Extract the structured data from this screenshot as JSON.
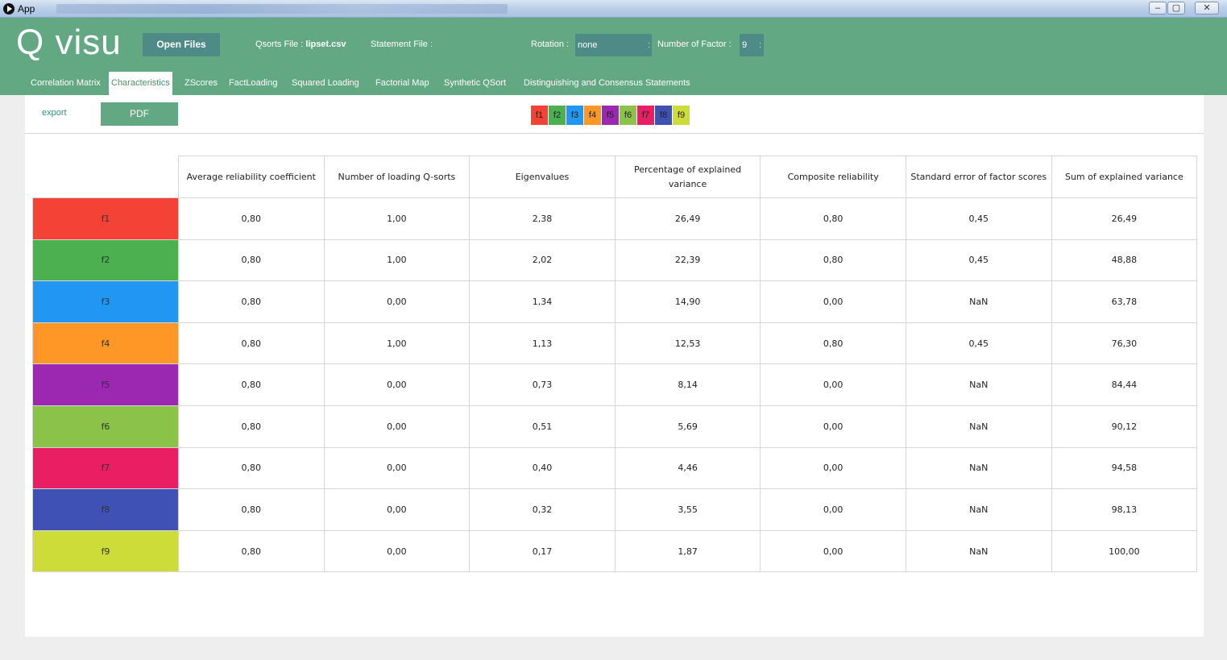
{
  "window": {
    "title": "App",
    "controls": {
      "minimize": "–",
      "maximize": "▢",
      "close": "✕"
    }
  },
  "header": {
    "logo": "Q visu",
    "open_files_label": "Open Files",
    "qsorts_file_label": "Qsorts File :",
    "qsorts_file_value": "lipset.csv",
    "statement_file_label": "Statement File :",
    "statement_file_value": "",
    "rotation_label": "Rotation :",
    "rotation_value": "none",
    "number_of_factor_label": "Number of Factor :",
    "number_of_factor_value": "9",
    "select_arrow": ":"
  },
  "tabs": [
    {
      "label": "Correlation Matrix",
      "active": false
    },
    {
      "label": "Characteristics",
      "active": true
    },
    {
      "label": "ZScores",
      "active": false
    },
    {
      "label": "FactLoading",
      "active": false
    },
    {
      "label": "Squared Loading",
      "active": false
    },
    {
      "label": "Factorial Map",
      "active": false
    },
    {
      "label": "Synthetic QSort",
      "active": false
    },
    {
      "label": "Distinguishing and Consensus Statements",
      "active": false
    }
  ],
  "toolbar": {
    "export_label": "export",
    "pdf_label": "PDF"
  },
  "factors": [
    {
      "label": "f1",
      "color": "#f44336"
    },
    {
      "label": "f2",
      "color": "#4caf50"
    },
    {
      "label": "f3",
      "color": "#2196f3"
    },
    {
      "label": "f4",
      "color": "#ff9726"
    },
    {
      "label": "f5",
      "color": "#9c27b0"
    },
    {
      "label": "f6",
      "color": "#8bc34a"
    },
    {
      "label": "f7",
      "color": "#e91e63"
    },
    {
      "label": "f8",
      "color": "#3f51b5"
    },
    {
      "label": "f9",
      "color": "#cddc39"
    }
  ],
  "table": {
    "columns": [
      "Average reliability coefficient",
      "Number of loading Q-sorts",
      "Eigenvalues",
      "Percentage of explained variance",
      "Composite reliability",
      "Standard error of factor scores",
      "Sum of explained variance"
    ],
    "rows": [
      [
        "0,80",
        "1,00",
        "2,38",
        "26,49",
        "0,80",
        "0,45",
        "26,49"
      ],
      [
        "0,80",
        "1,00",
        "2,02",
        "22,39",
        "0,80",
        "0,45",
        "48,88"
      ],
      [
        "0,80",
        "0,00",
        "1,34",
        "14,90",
        "0,00",
        "NaN",
        "63,78"
      ],
      [
        "0,80",
        "1,00",
        "1,13",
        "12,53",
        "0,80",
        "0,45",
        "76,30"
      ],
      [
        "0,80",
        "0,00",
        "0,73",
        "8,14",
        "0,00",
        "NaN",
        "84,44"
      ],
      [
        "0,80",
        "0,00",
        "0,51",
        "5,69",
        "0,00",
        "NaN",
        "90,12"
      ],
      [
        "0,80",
        "0,00",
        "0,40",
        "4,46",
        "0,00",
        "NaN",
        "94,58"
      ],
      [
        "0,80",
        "0,00",
        "0,32",
        "3,55",
        "0,00",
        "NaN",
        "98,13"
      ],
      [
        "0,80",
        "0,00",
        "0,17",
        "1,87",
        "0,00",
        "NaN",
        "100,00"
      ]
    ]
  }
}
